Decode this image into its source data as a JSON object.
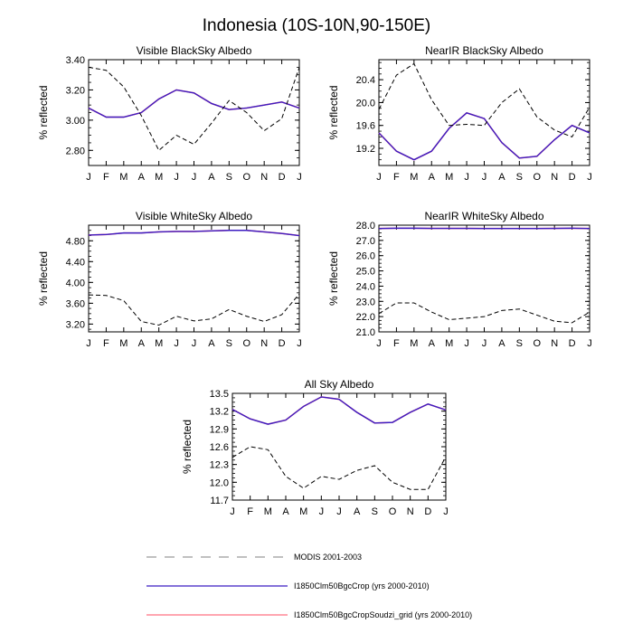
{
  "figure": {
    "title": "Indonesia (10S-10N,90-150E)"
  },
  "colors": {
    "modis": "#000000",
    "crop": "#3b1cc2",
    "soudzi": "#ff6f80",
    "axis": "#000000",
    "legend_modis": "#9a9a9a"
  },
  "legend": [
    {
      "key": "modis",
      "label": "MODIS 2001-2003",
      "dash": true
    },
    {
      "key": "crop",
      "label": "I1850Clm50BgcCrop (yrs 2000-2010)",
      "dash": false
    },
    {
      "key": "soudzi",
      "label": "I1850Clm50BgcCropSoudzi_grid (yrs 2000-2010)",
      "dash": false
    }
  ],
  "chart_data": [
    {
      "type": "line",
      "title": "Visible BlackSky Albedo",
      "ylabel": "% reflected",
      "categories": [
        "J",
        "F",
        "M",
        "A",
        "M",
        "J",
        "J",
        "A",
        "S",
        "O",
        "N",
        "D",
        "J"
      ],
      "ylim": [
        2.7,
        3.4
      ],
      "yticks": [
        "2.80",
        "3.00",
        "3.20",
        "3.40"
      ],
      "series": [
        {
          "name": "MODIS 2001-2003",
          "key": "modis",
          "values": [
            3.35,
            3.33,
            3.22,
            3.03,
            2.8,
            2.9,
            2.84,
            2.98,
            3.13,
            3.05,
            2.93,
            3.01,
            3.35
          ]
        },
        {
          "name": "I1850Clm50BgcCrop (yrs 2000-2010)",
          "key": "crop",
          "values": [
            3.08,
            3.02,
            3.02,
            3.05,
            3.14,
            3.2,
            3.18,
            3.11,
            3.07,
            3.08,
            3.1,
            3.12,
            3.08
          ]
        },
        {
          "name": "I1850Clm50BgcCropSoudzi_grid (yrs 2000-2010)",
          "key": "soudzi",
          "values": [
            3.08,
            3.02,
            3.02,
            3.05,
            3.14,
            3.2,
            3.18,
            3.11,
            3.07,
            3.08,
            3.1,
            3.12,
            3.08
          ]
        }
      ]
    },
    {
      "type": "line",
      "title": "NearIR BlackSky Albedo",
      "ylabel": "% reflected",
      "categories": [
        "J",
        "F",
        "M",
        "A",
        "M",
        "J",
        "J",
        "A",
        "S",
        "O",
        "N",
        "D",
        "J"
      ],
      "ylim": [
        18.9,
        20.75
      ],
      "yticks": [
        "19.2",
        "19.6",
        "20.0",
        "20.4"
      ],
      "series": [
        {
          "name": "MODIS 2001-2003",
          "key": "modis",
          "values": [
            19.88,
            20.48,
            20.68,
            20.05,
            19.6,
            19.62,
            19.6,
            20.0,
            20.24,
            19.75,
            19.52,
            19.4,
            19.92
          ]
        },
        {
          "name": "I1850Clm50BgcCrop (yrs 2000-2010)",
          "key": "crop",
          "values": [
            19.47,
            19.15,
            19.0,
            19.15,
            19.55,
            19.82,
            19.72,
            19.3,
            19.03,
            19.06,
            19.35,
            19.6,
            19.47
          ]
        },
        {
          "name": "I1850Clm50BgcCropSoudzi_grid (yrs 2000-2010)",
          "key": "soudzi",
          "values": [
            19.47,
            19.15,
            19.0,
            19.15,
            19.55,
            19.82,
            19.72,
            19.3,
            19.03,
            19.06,
            19.35,
            19.6,
            19.47
          ]
        }
      ]
    },
    {
      "type": "line",
      "title": "Visible WhiteSky Albedo",
      "ylabel": "% reflected",
      "categories": [
        "J",
        "F",
        "M",
        "A",
        "M",
        "J",
        "J",
        "A",
        "S",
        "O",
        "N",
        "D",
        "J"
      ],
      "ylim": [
        3.05,
        5.1
      ],
      "yticks": [
        "3.20",
        "3.60",
        "4.00",
        "4.40",
        "4.80"
      ],
      "series": [
        {
          "name": "MODIS 2001-2003",
          "key": "modis",
          "values": [
            3.76,
            3.75,
            3.65,
            3.25,
            3.18,
            3.35,
            3.26,
            3.3,
            3.48,
            3.35,
            3.25,
            3.38,
            3.78
          ]
        },
        {
          "name": "I1850Clm50BgcCrop (yrs 2000-2010)",
          "key": "crop",
          "values": [
            4.91,
            4.92,
            4.95,
            4.95,
            4.97,
            4.98,
            4.98,
            4.99,
            5.0,
            5.0,
            4.97,
            4.94,
            4.9
          ]
        },
        {
          "name": "I1850Clm50BgcCropSoudzi_grid (yrs 2000-2010)",
          "key": "soudzi",
          "values": [
            4.91,
            4.92,
            4.95,
            4.95,
            4.97,
            4.98,
            4.98,
            4.99,
            5.0,
            5.0,
            4.97,
            4.94,
            4.9
          ]
        }
      ]
    },
    {
      "type": "line",
      "title": "NearIR WhiteSky Albedo",
      "ylabel": "% reflected",
      "categories": [
        "J",
        "F",
        "M",
        "A",
        "M",
        "J",
        "J",
        "A",
        "S",
        "O",
        "N",
        "D",
        "J"
      ],
      "ylim": [
        21.0,
        28.0
      ],
      "yticks": [
        "21.0",
        "22.0",
        "23.0",
        "24.0",
        "25.0",
        "26.0",
        "27.0",
        "28.0"
      ],
      "series": [
        {
          "name": "MODIS 2001-2003",
          "key": "modis",
          "values": [
            22.2,
            22.9,
            22.9,
            22.3,
            21.8,
            21.9,
            22.0,
            22.4,
            22.5,
            22.1,
            21.7,
            21.6,
            22.3
          ]
        },
        {
          "name": "I1850Clm50BgcCrop (yrs 2000-2010)",
          "key": "crop",
          "values": [
            27.78,
            27.8,
            27.8,
            27.79,
            27.79,
            27.79,
            27.78,
            27.78,
            27.78,
            27.78,
            27.79,
            27.8,
            27.78
          ]
        },
        {
          "name": "I1850Clm50BgcCropSoudzi_grid (yrs 2000-2010)",
          "key": "soudzi",
          "values": [
            27.78,
            27.8,
            27.8,
            27.79,
            27.79,
            27.79,
            27.78,
            27.78,
            27.78,
            27.78,
            27.79,
            27.8,
            27.78
          ]
        }
      ]
    },
    {
      "type": "line",
      "title": "All Sky Albedo",
      "ylabel": "% reflected",
      "categories": [
        "J",
        "F",
        "M",
        "A",
        "M",
        "J",
        "J",
        "A",
        "S",
        "O",
        "N",
        "D",
        "J"
      ],
      "ylim": [
        11.7,
        13.5
      ],
      "yticks": [
        "11.7",
        "12.0",
        "12.3",
        "12.6",
        "12.9",
        "13.2",
        "13.5"
      ],
      "series": [
        {
          "name": "MODIS 2001-2003",
          "key": "modis",
          "values": [
            12.42,
            12.6,
            12.55,
            12.1,
            11.9,
            12.1,
            12.05,
            12.2,
            12.28,
            12.0,
            11.88,
            11.88,
            12.43
          ]
        },
        {
          "name": "I1850Clm50BgcCrop (yrs 2000-2010)",
          "key": "crop",
          "values": [
            13.23,
            13.07,
            12.98,
            13.05,
            13.28,
            13.44,
            13.4,
            13.18,
            13.0,
            13.01,
            13.18,
            13.32,
            13.22
          ]
        },
        {
          "name": "I1850Clm50BgcCropSoudzi_grid (yrs 2000-2010)",
          "key": "soudzi",
          "values": [
            13.23,
            13.07,
            12.98,
            13.05,
            13.28,
            13.44,
            13.4,
            13.18,
            13.0,
            13.01,
            13.18,
            13.32,
            13.22
          ]
        }
      ]
    }
  ]
}
